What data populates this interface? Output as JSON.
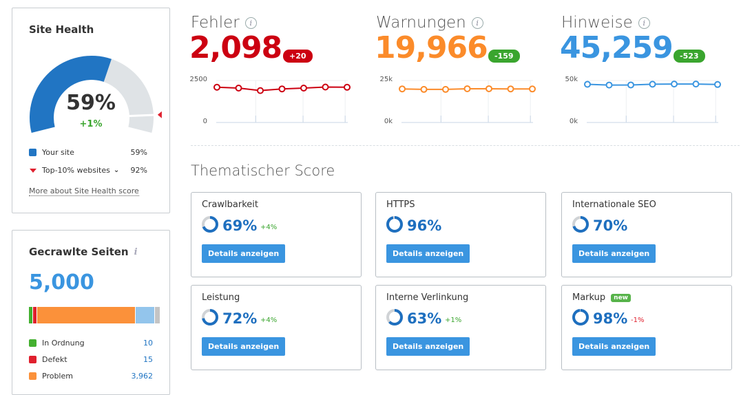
{
  "site_health": {
    "title": "Site Health",
    "percent": 59,
    "percent_label": "59%",
    "change": "+1%",
    "top10_percent": 92,
    "legend": [
      {
        "label": "Your site",
        "value": "59%",
        "color": "#2175c3"
      },
      {
        "label": "Top-10% websites",
        "value": "92%",
        "color": "#e0202e"
      }
    ],
    "link": "More about Site Health score"
  },
  "crawled": {
    "title": "Gecrawlte Seiten",
    "total": "5,000",
    "bar": [
      {
        "value": 10,
        "color": "#44b030"
      },
      {
        "value": 15,
        "color": "#e0202e"
      },
      {
        "value": 3962,
        "color": "#fb913a"
      },
      {
        "value": 800,
        "color": "#93c5ec"
      },
      {
        "value": 213,
        "color": "#c4c4c4"
      }
    ],
    "legend": [
      {
        "label": "In Ordnung",
        "value": "10",
        "color": "#44b030"
      },
      {
        "label": "Defekt",
        "value": "15",
        "color": "#e0202e"
      },
      {
        "label": "Problem",
        "value": "3,962",
        "color": "#fb913a"
      }
    ]
  },
  "metrics": [
    {
      "title": "Fehler",
      "value": "2,098",
      "change": "+20",
      "color": "#cc0011",
      "badge_color": "#cc0011",
      "ymax_label": "2500",
      "ymin_label": "0",
      "ymax": 2500,
      "values": [
        2100,
        2050,
        1900,
        2000,
        2050,
        2110,
        2098
      ]
    },
    {
      "title": "Warnungen",
      "value": "19,966",
      "change": "-159",
      "color": "#fb8b2a",
      "badge_color": "#3aa52e",
      "ymax_label": "25k",
      "ymin_label": "0k",
      "ymax": 25000,
      "values": [
        20000,
        19700,
        19700,
        20100,
        20100,
        20000,
        19966
      ]
    },
    {
      "title": "Hinweise",
      "value": "45,259",
      "change": "-523",
      "color": "#3a95e0",
      "badge_color": "#3aa52e",
      "ymax_label": "50k",
      "ymin_label": "0k",
      "ymax": 50000,
      "values": [
        45500,
        44600,
        44700,
        45600,
        45800,
        45800,
        45259
      ]
    }
  ],
  "thematic": {
    "title": "Thematischer Score",
    "button": "Details anzeigen",
    "new_badge": "new",
    "cards": [
      {
        "name": "Crawlbarkeit",
        "percent": 69,
        "label": "69%",
        "change": "+4%",
        "change_color": "#3aa52e"
      },
      {
        "name": "HTTPS",
        "percent": 96,
        "label": "96%",
        "change": "",
        "change_color": "#3aa52e"
      },
      {
        "name": "Internationale SEO",
        "percent": 70,
        "label": "70%",
        "change": "",
        "change_color": "#3aa52e"
      },
      {
        "name": "Leistung",
        "percent": 72,
        "label": "72%",
        "change": "+4%",
        "change_color": "#3aa52e"
      },
      {
        "name": "Interne Verlinkung",
        "percent": 63,
        "label": "63%",
        "change": "+1%",
        "change_color": "#3aa52e"
      },
      {
        "name": "Markup",
        "percent": 98,
        "label": "98%",
        "change": "-1%",
        "change_color": "#e0202e",
        "new": true
      }
    ]
  }
}
